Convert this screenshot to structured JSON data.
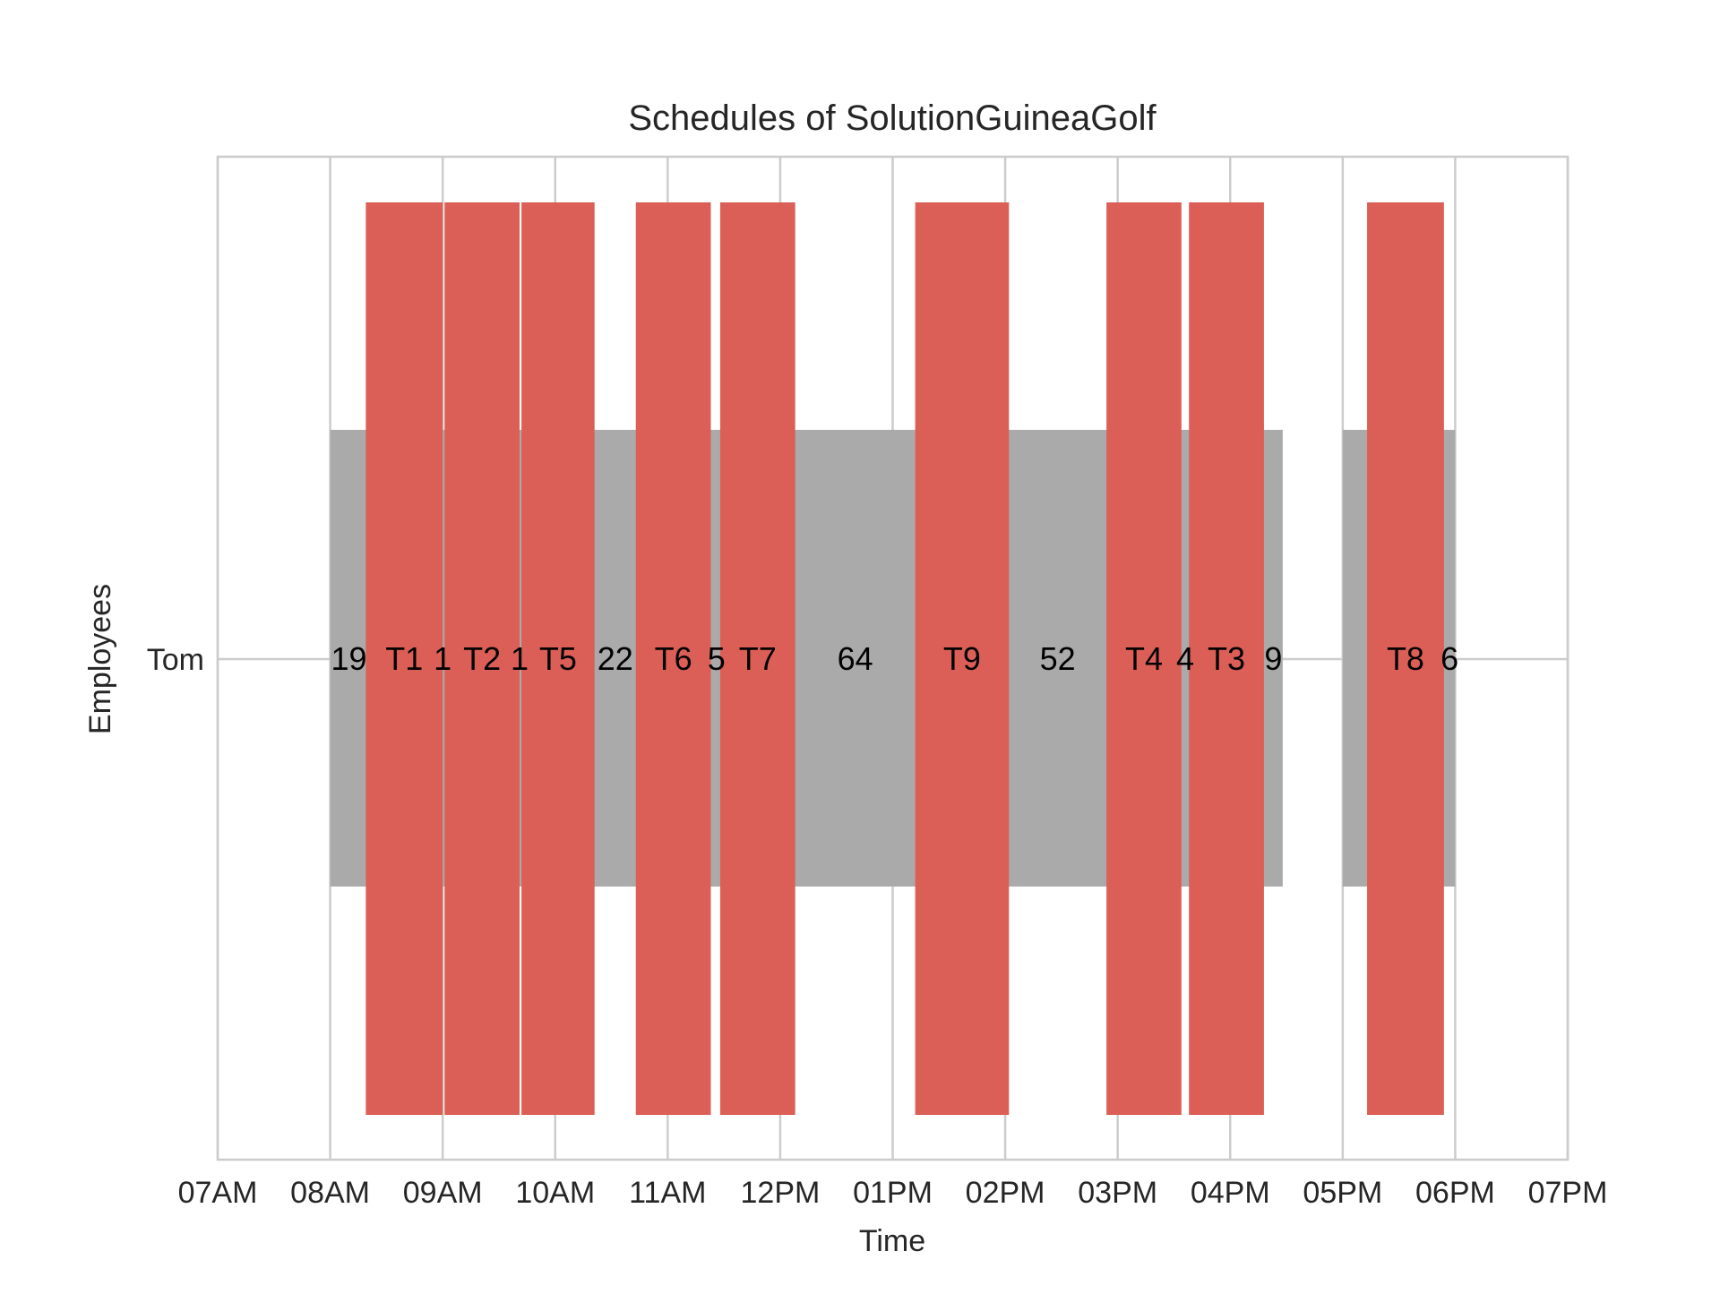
{
  "chart_data": {
    "type": "gantt",
    "title": "Schedules of SolutionGuineaGolf",
    "xlabel": "Time",
    "ylabel": "Employees",
    "xlim": [
      "07:00",
      "19:00"
    ],
    "x_ticks": [
      "07AM",
      "08AM",
      "09AM",
      "10AM",
      "11AM",
      "12PM",
      "01PM",
      "02PM",
      "03PM",
      "04PM",
      "05PM",
      "06PM",
      "07PM"
    ],
    "y_categories": [
      "Tom"
    ],
    "grid": true,
    "colors": {
      "shift": "#aaaaaa",
      "task": "#dc5f57",
      "grid": "#cccccc",
      "text": "#000000"
    },
    "shifts": [
      {
        "employee": "Tom",
        "start": "08:00",
        "end": "16:28"
      },
      {
        "employee": "Tom",
        "start": "17:00",
        "end": "18:00"
      }
    ],
    "tasks": [
      {
        "label": "T1",
        "start": "08:19",
        "end": "09:00"
      },
      {
        "label": "T2",
        "start": "09:01",
        "end": "09:41"
      },
      {
        "label": "T5",
        "start": "09:42",
        "end": "10:21"
      },
      {
        "label": "T6",
        "start": "10:43",
        "end": "11:23"
      },
      {
        "label": "T7",
        "start": "11:28",
        "end": "12:08"
      },
      {
        "label": "T9",
        "start": "13:12",
        "end": "14:02"
      },
      {
        "label": "T4",
        "start": "14:54",
        "end": "15:34"
      },
      {
        "label": "T3",
        "start": "15:38",
        "end": "16:18"
      },
      {
        "label": "T8",
        "start": "17:13",
        "end": "17:54"
      }
    ],
    "gaps": [
      {
        "label": "19",
        "at": "08:10"
      },
      {
        "label": "1",
        "at": "09:00"
      },
      {
        "label": "1",
        "at": "09:41"
      },
      {
        "label": "22",
        "at": "10:32"
      },
      {
        "label": "5",
        "at": "11:26"
      },
      {
        "label": "64",
        "at": "12:40"
      },
      {
        "label": "52",
        "at": "14:28"
      },
      {
        "label": "4",
        "at": "15:36"
      },
      {
        "label": "9",
        "at": "16:23"
      },
      {
        "label": "6",
        "at": "17:57"
      }
    ]
  }
}
